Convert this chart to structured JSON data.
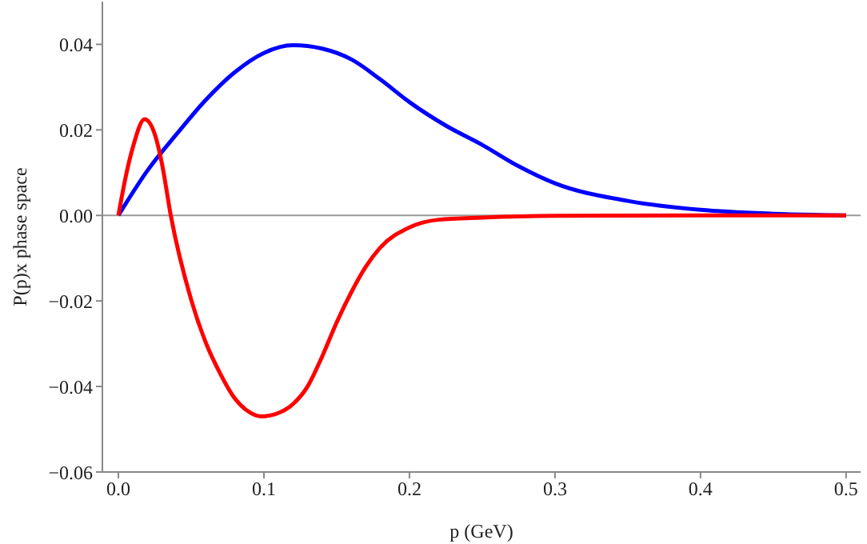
{
  "chart_data": {
    "type": "line",
    "xlabel": "p (GeV)",
    "ylabel": "P(p)x phase space",
    "xlim": [
      -0.011,
      0.51
    ],
    "ylim": [
      -0.06,
      0.05
    ],
    "xticks": [
      {
        "value": 0,
        "label": "0.0"
      },
      0.1,
      0.2,
      0.3,
      0.4,
      0.5
    ],
    "yticks": [
      {
        "value": -0.06,
        "label": "−0.06"
      },
      {
        "value": -0.04,
        "label": "−0.04"
      },
      {
        "value": -0.02,
        "label": "−0.02"
      },
      {
        "value": 0,
        "label": "0.00"
      },
      {
        "value": 0.02,
        "label": "0.02"
      },
      {
        "value": 0.04,
        "label": "0.04"
      }
    ],
    "grid": false,
    "legend": false,
    "marker": "none",
    "line_style": "solid",
    "ref_lines": [
      {
        "axis": "y",
        "value": 0,
        "color": "#9a9a9a"
      }
    ],
    "series": [
      {
        "color": "#0000ff",
        "x": [
          0,
          0.02,
          0.04,
          0.06,
          0.08,
          0.1,
          0.12,
          0.14,
          0.16,
          0.18,
          0.2,
          0.225,
          0.25,
          0.275,
          0.3,
          0.35,
          0.4,
          0.45,
          0.5
        ],
        "values": [
          0,
          0.0105,
          0.019,
          0.027,
          0.0335,
          0.038,
          0.0398,
          0.039,
          0.0365,
          0.0318,
          0.0265,
          0.021,
          0.0165,
          0.0115,
          0.0075,
          0.0034,
          0.0013,
          0.0004,
          0
        ]
      },
      {
        "color": "#ff0000",
        "x": [
          0,
          0.005,
          0.01,
          0.018,
          0.025,
          0.03,
          0.036,
          0.05,
          0.06,
          0.07,
          0.08,
          0.09,
          0.098,
          0.11,
          0.12,
          0.13,
          0.14,
          0.15,
          0.16,
          0.17,
          0.18,
          0.2,
          0.22,
          0.25,
          0.3,
          0.4,
          0.5
        ],
        "values": [
          0,
          0.009,
          0.016,
          0.0225,
          0.019,
          0.012,
          0,
          -0.0197,
          -0.0297,
          -0.037,
          -0.0428,
          -0.046,
          -0.047,
          -0.0462,
          -0.0441,
          -0.04,
          -0.033,
          -0.025,
          -0.018,
          -0.012,
          -0.0075,
          -0.0028,
          -0.001,
          -0.0005,
          -0.0001,
          0,
          0
        ]
      }
    ]
  }
}
